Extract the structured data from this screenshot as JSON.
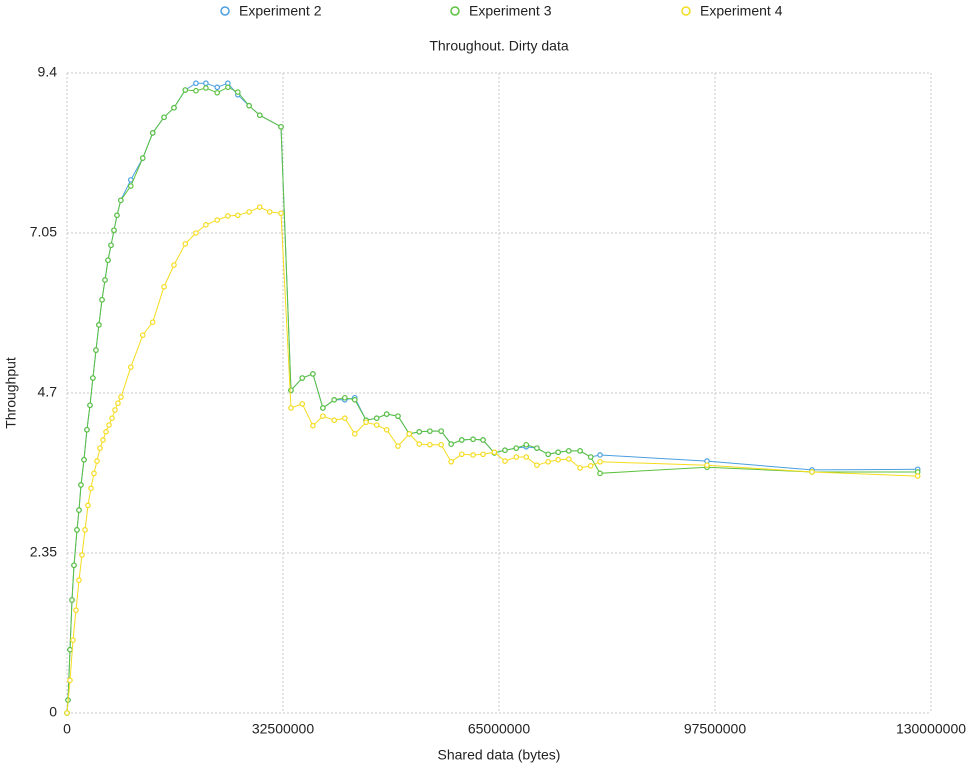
{
  "chart_data": {
    "type": "line",
    "title": "Throughout. Dirty data",
    "x_label": "Shared data (bytes)",
    "y_label": "Throughput",
    "xlim": [
      0,
      130000000
    ],
    "xticks": [
      0,
      32500000,
      65000000,
      97500000,
      130000000
    ],
    "ylim": [
      0,
      9.4
    ],
    "yticks": [
      0,
      2.35,
      4.7,
      7.05,
      9.4
    ],
    "grid": true,
    "legend": "top",
    "series": [
      {
        "name": "Experiment 2",
        "color": "#4a9fe0",
        "x": [
          0,
          150000,
          450000,
          750000,
          1050000,
          1500000,
          1800000,
          2100000,
          2560000,
          3000000,
          3460000,
          3900000,
          4360000,
          4800000,
          5270000,
          5720000,
          6170000,
          6620000,
          7070000,
          7520000,
          8100000,
          9600000,
          11400000,
          12900000,
          14600000,
          16100000,
          17800000,
          19400000,
          20900000,
          22600000,
          24200000,
          25700000,
          27400000,
          29000000,
          32200000,
          33700000,
          35400000,
          37000000,
          38500000,
          40200000,
          41800000,
          43300000,
          45000000,
          46600000,
          48100000,
          49800000,
          51500000,
          53000000,
          54600000,
          56300000,
          57800000,
          59400000,
          61100000,
          62600000,
          64300000,
          65900000,
          67600000,
          69100000,
          70700000,
          72400000,
          73900000,
          75500000,
          77200000,
          78800000,
          80200000,
          96300000,
          112100000,
          128000000
        ],
        "values": [
          0,
          0.19,
          0.93,
          1.66,
          2.17,
          2.69,
          2.98,
          3.35,
          3.72,
          4.16,
          4.52,
          4.92,
          5.33,
          5.7,
          6.07,
          6.36,
          6.65,
          6.87,
          7.09,
          7.31,
          7.53,
          7.83,
          8.15,
          8.52,
          8.75,
          8.89,
          9.15,
          9.25,
          9.25,
          9.19,
          9.25,
          9.08,
          8.92,
          8.78,
          8.61,
          4.74,
          4.92,
          4.98,
          4.48,
          4.6,
          4.6,
          4.63,
          4.3,
          4.33,
          4.39,
          4.36,
          4.1,
          4.13,
          4.14,
          4.14,
          3.95,
          4.01,
          4.02,
          4.01,
          3.82,
          3.86,
          3.89,
          3.91,
          3.89,
          3.8,
          3.83,
          3.85,
          3.85,
          3.76,
          3.79,
          3.7,
          3.57,
          3.58
        ]
      },
      {
        "name": "Experiment 3",
        "color": "#5cc23f",
        "x": [
          0,
          150000,
          450000,
          750000,
          1050000,
          1500000,
          1800000,
          2100000,
          2560000,
          3000000,
          3460000,
          3900000,
          4360000,
          4800000,
          5270000,
          5720000,
          6170000,
          6620000,
          7070000,
          7520000,
          8100000,
          9600000,
          11400000,
          12900000,
          14600000,
          16100000,
          17800000,
          19400000,
          20900000,
          22600000,
          24200000,
          25700000,
          27400000,
          29000000,
          32200000,
          33700000,
          35400000,
          37000000,
          38500000,
          40200000,
          41800000,
          43300000,
          45000000,
          46600000,
          48100000,
          49800000,
          51500000,
          53000000,
          54600000,
          56300000,
          57800000,
          59400000,
          61100000,
          62600000,
          64300000,
          65900000,
          67600000,
          69100000,
          70700000,
          72400000,
          73900000,
          75500000,
          77200000,
          78800000,
          80200000,
          96300000,
          112100000,
          128000000
        ],
        "values": [
          0,
          0.19,
          0.93,
          1.66,
          2.17,
          2.69,
          2.98,
          3.35,
          3.72,
          4.16,
          4.52,
          4.92,
          5.33,
          5.7,
          6.07,
          6.36,
          6.65,
          6.87,
          7.09,
          7.31,
          7.53,
          7.74,
          8.15,
          8.52,
          8.75,
          8.89,
          9.15,
          9.14,
          9.18,
          9.11,
          9.19,
          9.12,
          8.92,
          8.78,
          8.61,
          4.74,
          4.92,
          4.98,
          4.48,
          4.6,
          4.63,
          4.6,
          4.3,
          4.33,
          4.39,
          4.36,
          4.1,
          4.13,
          4.14,
          4.14,
          3.95,
          4.01,
          4.02,
          4.01,
          3.82,
          3.86,
          3.89,
          3.94,
          3.89,
          3.8,
          3.83,
          3.85,
          3.85,
          3.76,
          3.52,
          3.61,
          3.54,
          3.54
        ]
      },
      {
        "name": "Experiment 4",
        "color": "#f5dc1e",
        "x": [
          0,
          450000,
          900000,
          1350000,
          1800000,
          2260000,
          2710000,
          3160000,
          3610000,
          4060000,
          4510000,
          4960000,
          5420000,
          5870000,
          6320000,
          6770000,
          7220000,
          7670000,
          8120000,
          9600000,
          11400000,
          12900000,
          14600000,
          16100000,
          17800000,
          19400000,
          20900000,
          22600000,
          24200000,
          25700000,
          27400000,
          29000000,
          30500000,
          32200000,
          33700000,
          35400000,
          37000000,
          38500000,
          40200000,
          41800000,
          43300000,
          45000000,
          46600000,
          48100000,
          49800000,
          51500000,
          53000000,
          54600000,
          56300000,
          57800000,
          59400000,
          61100000,
          62600000,
          64300000,
          65900000,
          67600000,
          69100000,
          70700000,
          72400000,
          73900000,
          75500000,
          77200000,
          78800000,
          80200000,
          96300000,
          112100000,
          128000000
        ],
        "values": [
          0,
          0.48,
          1.07,
          1.51,
          1.95,
          2.32,
          2.69,
          3.05,
          3.3,
          3.52,
          3.7,
          3.89,
          4.01,
          4.13,
          4.23,
          4.33,
          4.45,
          4.55,
          4.64,
          5.08,
          5.55,
          5.74,
          6.26,
          6.58,
          6.89,
          7.05,
          7.17,
          7.24,
          7.3,
          7.31,
          7.36,
          7.43,
          7.36,
          7.34,
          4.48,
          4.54,
          4.22,
          4.36,
          4.3,
          4.33,
          4.1,
          4.27,
          4.23,
          4.16,
          3.92,
          4.1,
          3.95,
          3.94,
          3.94,
          3.69,
          3.8,
          3.79,
          3.8,
          3.83,
          3.7,
          3.76,
          3.76,
          3.64,
          3.69,
          3.72,
          3.73,
          3.6,
          3.63,
          3.69,
          3.64,
          3.54,
          3.48
        ]
      }
    ]
  }
}
